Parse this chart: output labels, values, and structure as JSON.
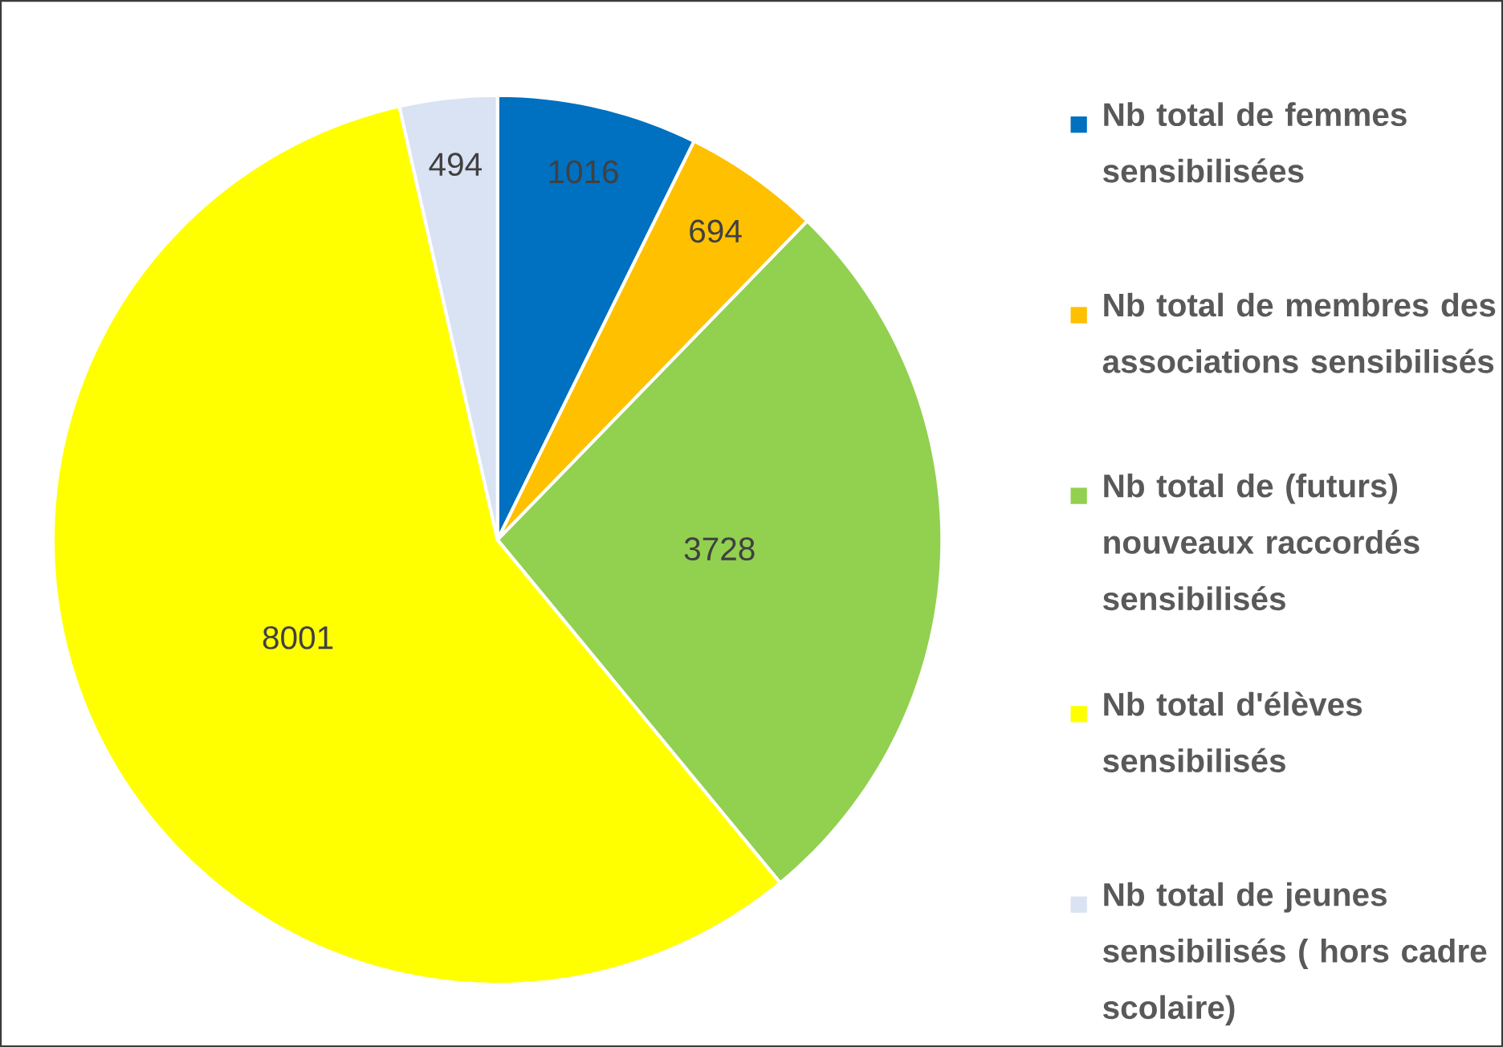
{
  "chart_data": {
    "type": "pie",
    "categories": [
      "Nb total de femmes sensibilisées",
      "Nb total de membres des associations sensibilisés",
      "Nb total de (futurs) nouveaux raccordés sensibilisés",
      "Nb total d'élèves sensibilisés",
      "Nb total de jeunes sensibilisés ( hors cadre scolaire)"
    ],
    "values": [
      1016,
      694,
      3728,
      8001,
      494
    ],
    "colors": [
      "#0070c0",
      "#ffc000",
      "#92d050",
      "#ffff00",
      "#dae3f3"
    ],
    "data_labels": true,
    "legend": "right"
  }
}
